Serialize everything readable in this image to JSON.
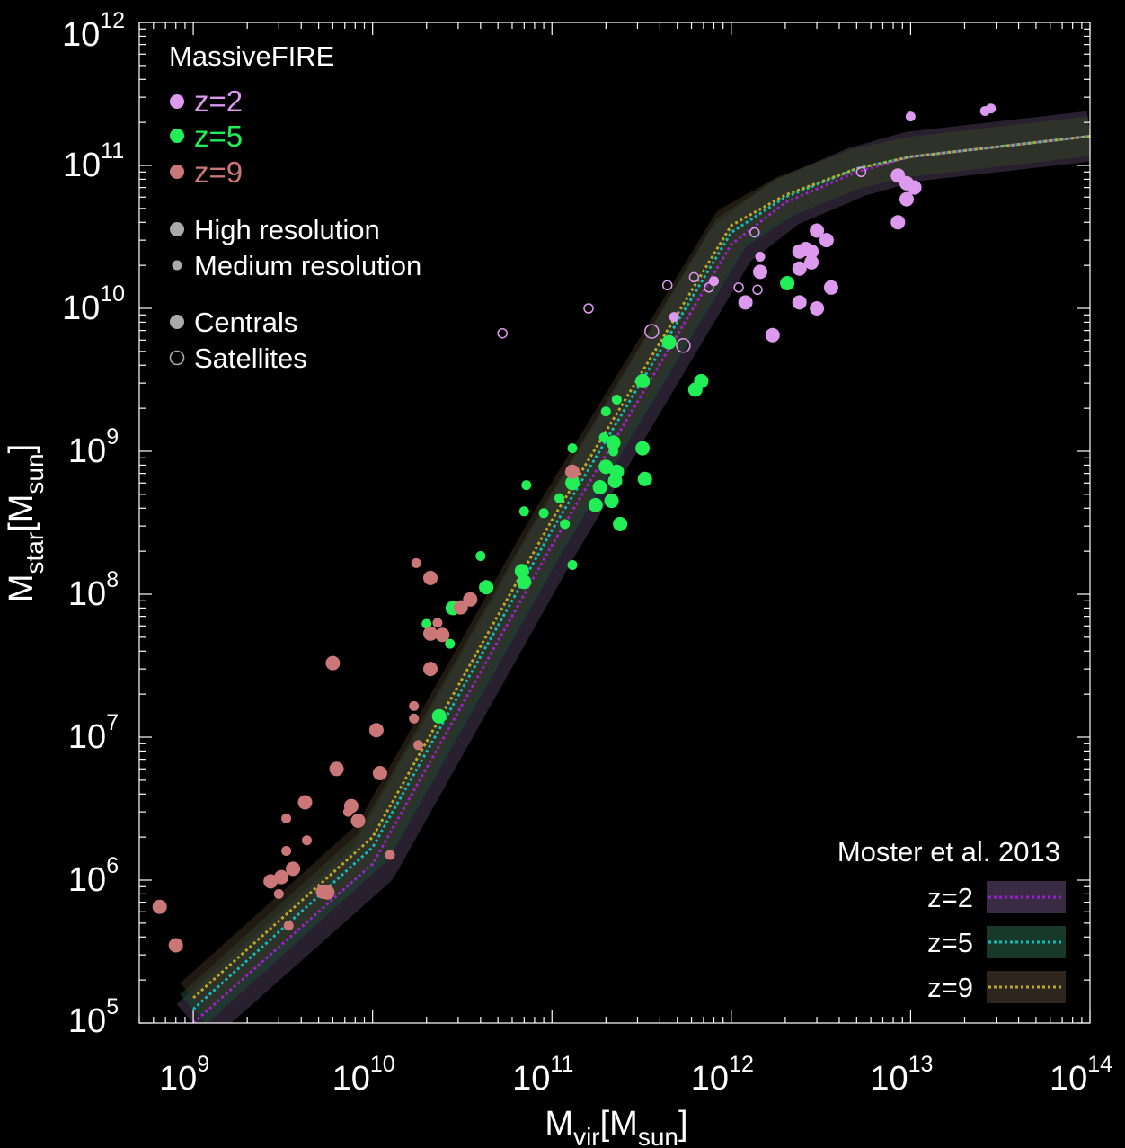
{
  "chart_data": {
    "type": "scatter",
    "x_scale": "log",
    "y_scale": "log",
    "xlim": [
      500000000.0,
      100000000000000.0
    ],
    "ylim": [
      100000.0,
      1000000000000.0
    ],
    "xlabel": {
      "main": "M",
      "sub": "vir",
      "rest": "[M",
      "sub2": "sun",
      "end": "]"
    },
    "ylabel": {
      "main": "M",
      "sub": "star",
      "rest": "[M",
      "sub2": "sun",
      "end": "]"
    },
    "x_ticks": [
      {
        "value": 1000000000.0,
        "base": "10",
        "exp": "9"
      },
      {
        "value": 10000000000.0,
        "base": "10",
        "exp": "10"
      },
      {
        "value": 100000000000.0,
        "base": "10",
        "exp": "11"
      },
      {
        "value": 1000000000000.0,
        "base": "10",
        "exp": "12"
      },
      {
        "value": 10000000000000.0,
        "base": "10",
        "exp": "13"
      },
      {
        "value": 100000000000000.0,
        "base": "10",
        "exp": "14"
      }
    ],
    "y_ticks": [
      {
        "value": 100000.0,
        "base": "10",
        "exp": "5"
      },
      {
        "value": 1000000.0,
        "base": "10",
        "exp": "6"
      },
      {
        "value": 10000000.0,
        "base": "10",
        "exp": "7"
      },
      {
        "value": 100000000.0,
        "base": "10",
        "exp": "8"
      },
      {
        "value": 1000000000.0,
        "base": "10",
        "exp": "9"
      },
      {
        "value": 10000000000.0,
        "base": "10",
        "exp": "10"
      },
      {
        "value": 100000000000.0,
        "base": "10",
        "exp": "11"
      },
      {
        "value": 1000000000000.0,
        "base": "10",
        "exp": "12"
      }
    ],
    "legend_top": {
      "title": "MassiveFIRE",
      "placement": "top-left",
      "series": [
        {
          "label": "z=2",
          "color": "#dd99ee"
        },
        {
          "label": "z=5",
          "color": "#22ee55"
        },
        {
          "label": "z=9",
          "color": "#cc7777"
        }
      ],
      "markers": [
        {
          "label": "High resolution",
          "kind": "large"
        },
        {
          "label": "Medium resolution",
          "kind": "small"
        },
        {
          "label": "Centrals",
          "kind": "filled"
        },
        {
          "label": "Satellites",
          "kind": "open"
        }
      ]
    },
    "legend_bottom": {
      "title": "Moster et al. 2013",
      "placement": "bottom-right",
      "entries": [
        {
          "label": "z=2",
          "line_color": "#9922cc",
          "band_color": "#3a2a44"
        },
        {
          "label": "z=5",
          "line_color": "#11bbbb",
          "band_color": "#18382a"
        },
        {
          "label": "z=9",
          "line_color": "#bbaa22",
          "band_color": "#2e261e"
        }
      ]
    },
    "relations": [
      {
        "z": "2",
        "color": "#9922cc",
        "band_color": "#4a3a55",
        "points": [
          [
            1000000000.0,
            100000.0
          ],
          [
            10000000000.0,
            1300000.0
          ],
          [
            100000000000.0,
            220000000.0
          ],
          [
            1000000000000.0,
            28000000000.0
          ],
          [
            2000000000000.0,
            55000000000.0
          ],
          [
            5000000000000.0,
            90000000000.0
          ],
          [
            10000000000000.0,
            115000000000.0
          ],
          [
            100000000000000.0,
            160000000000.0
          ]
        ]
      },
      {
        "z": "5",
        "color": "#11bbbb",
        "band_color": "#1f4a33",
        "points": [
          [
            1000000000.0,
            125000.0
          ],
          [
            10000000000.0,
            1700000.0
          ],
          [
            100000000000.0,
            280000000.0
          ],
          [
            1000000000000.0,
            34000000000.0
          ],
          [
            2000000000000.0,
            60000000000.0
          ],
          [
            5000000000000.0,
            95000000000.0
          ],
          [
            10000000000000.0,
            115000000000.0
          ],
          [
            100000000000000.0,
            160000000000.0
          ]
        ]
      },
      {
        "z": "9",
        "color": "#bbaa22",
        "band_color": "#3a3020",
        "points": [
          [
            1000000000.0,
            150000.0
          ],
          [
            10000000000.0,
            2000000.0
          ],
          [
            100000000000.0,
            330000000.0
          ],
          [
            1000000000000.0,
            38000000000.0
          ],
          [
            2000000000000.0,
            62000000000.0
          ],
          [
            5000000000000.0,
            95000000000.0
          ],
          [
            10000000000000.0,
            115000000000.0
          ],
          [
            100000000000000.0,
            160000000000.0
          ]
        ]
      }
    ],
    "series": [
      {
        "name": "z=2",
        "color": "#dd99ee",
        "points": [
          [
            10000000000000.0,
            220000000000.0,
            "s",
            "f"
          ],
          [
            26000000000000.0,
            240000000000.0,
            "s",
            "f"
          ],
          [
            28000000000000.0,
            250000000000.0,
            "s",
            "f"
          ],
          [
            8500000000000.0,
            85000000000.0,
            "l",
            "f"
          ],
          [
            9500000000000.0,
            75000000000.0,
            "l",
            "f"
          ],
          [
            10500000000000.0,
            70000000000.0,
            "l",
            "f"
          ],
          [
            9500000000000.0,
            58000000000.0,
            "l",
            "f"
          ],
          [
            8500000000000.0,
            40000000000.0,
            "l",
            "f"
          ],
          [
            2400000000000.0,
            25000000000.0,
            "l",
            "f"
          ],
          [
            2600000000000.0,
            26000000000.0,
            "l",
            "f"
          ],
          [
            2800000000000.0,
            25000000000.0,
            "l",
            "f"
          ],
          [
            3000000000000.0,
            35000000000.0,
            "l",
            "f"
          ],
          [
            3400000000000.0,
            30000000000.0,
            "l",
            "f"
          ],
          [
            2800000000000.0,
            21000000000.0,
            "l",
            "f"
          ],
          [
            2400000000000.0,
            19000000000.0,
            "l",
            "f"
          ],
          [
            1450000000000.0,
            18000000000.0,
            "l",
            "f"
          ],
          [
            1450000000000.0,
            23000000000.0,
            "s",
            "f"
          ],
          [
            3600000000000.0,
            14000000000.0,
            "l",
            "f"
          ],
          [
            2400000000000.0,
            11000000000.0,
            "l",
            "f"
          ],
          [
            3000000000000.0,
            10000000000.0,
            "l",
            "f"
          ],
          [
            1200000000000.0,
            11000000000.0,
            "l",
            "f"
          ],
          [
            1700000000000.0,
            6500000000.0,
            "l",
            "f"
          ],
          [
            800000000000.0,
            15500000000.0,
            "s",
            "f"
          ],
          [
            480000000000.0,
            8700000000.0,
            "s",
            "f"
          ],
          [
            5300000000000.0,
            90000000000.0,
            "s",
            "o"
          ],
          [
            1350000000000.0,
            34000000000.0,
            "s",
            "o"
          ],
          [
            620000000000.0,
            16500000000.0,
            "s",
            "o"
          ],
          [
            750000000000.0,
            14000000000.0,
            "s",
            "o"
          ],
          [
            440000000000.0,
            14500000000.0,
            "s",
            "o"
          ],
          [
            1100000000000.0,
            14000000000.0,
            "s",
            "o"
          ],
          [
            1400000000000.0,
            13500000000.0,
            "s",
            "o"
          ],
          [
            160000000000.0,
            10000000000.0,
            "s",
            "o"
          ],
          [
            53000000000.0,
            6700000000.0,
            "s",
            "o"
          ],
          [
            360000000000.0,
            6900000000.0,
            "l",
            "o"
          ],
          [
            540000000000.0,
            5500000000.0,
            "l",
            "o"
          ]
        ]
      },
      {
        "name": "z=5",
        "color": "#22ee55",
        "points": [
          [
            2050000000000.0,
            15000000000.0,
            "l",
            "f"
          ],
          [
            450000000000.0,
            5800000000.0,
            "l",
            "f"
          ],
          [
            320000000000.0,
            3100000000.0,
            "l",
            "f"
          ],
          [
            680000000000.0,
            3100000000.0,
            "l",
            "f"
          ],
          [
            630000000000.0,
            2700000000.0,
            "l",
            "f"
          ],
          [
            230000000000.0,
            2300000000.0,
            "s",
            "f"
          ],
          [
            200000000000.0,
            1900000000.0,
            "s",
            "f"
          ],
          [
            195000000000.0,
            1250000000.0,
            "s",
            "f"
          ],
          [
            220000000000.0,
            1150000000.0,
            "l",
            "f"
          ],
          [
            320000000000.0,
            1050000000.0,
            "l",
            "f"
          ],
          [
            220000000000.0,
            1000000000.0,
            "s",
            "f"
          ],
          [
            130000000000.0,
            1050000000.0,
            "s",
            "f"
          ],
          [
            200000000000.0,
            780000000.0,
            "l",
            "f"
          ],
          [
            230000000000.0,
            720000000.0,
            "l",
            "f"
          ],
          [
            225000000000.0,
            620000000.0,
            "l",
            "f"
          ],
          [
            330000000000.0,
            640000000.0,
            "l",
            "f"
          ],
          [
            130000000000.0,
            600000000.0,
            "l",
            "f"
          ],
          [
            185000000000.0,
            560000000.0,
            "l",
            "f"
          ],
          [
            72000000000.0,
            580000000.0,
            "s",
            "f"
          ],
          [
            110000000000.0,
            470000000.0,
            "s",
            "f"
          ],
          [
            215000000000.0,
            450000000.0,
            "l",
            "f"
          ],
          [
            175000000000.0,
            420000000.0,
            "l",
            "f"
          ],
          [
            70000000000.0,
            380000000.0,
            "s",
            "f"
          ],
          [
            90000000000.0,
            370000000.0,
            "s",
            "f"
          ],
          [
            118000000000.0,
            310000000.0,
            "s",
            "f"
          ],
          [
            240000000000.0,
            310000000.0,
            "l",
            "f"
          ],
          [
            40000000000.0,
            185000000.0,
            "s",
            "f"
          ],
          [
            130000000000.0,
            160000000.0,
            "s",
            "f"
          ],
          [
            68000000000.0,
            145000000.0,
            "l",
            "f"
          ],
          [
            70000000000.0,
            122000000.0,
            "l",
            "f"
          ],
          [
            43000000000.0,
            112000000.0,
            "l",
            "f"
          ],
          [
            28000000000.0,
            80000000.0,
            "l",
            "f"
          ],
          [
            20000000000.0,
            62000000.0,
            "s",
            "f"
          ],
          [
            27000000000.0,
            45000000.0,
            "s",
            "f"
          ],
          [
            23500000000.0,
            14000000.0,
            "l",
            "f"
          ]
        ]
      },
      {
        "name": "z=9",
        "color": "#cc7777",
        "points": [
          [
            130000000000.0,
            720000000.0,
            "l",
            "f"
          ],
          [
            17500000000.0,
            165000000.0,
            "s",
            "f"
          ],
          [
            21000000000.0,
            130000000.0,
            "l",
            "f"
          ],
          [
            35000000000.0,
            92000000.0,
            "l",
            "f"
          ],
          [
            31000000000.0,
            81000000.0,
            "l",
            "f"
          ],
          [
            23000000000.0,
            63000000.0,
            "s",
            "f"
          ],
          [
            21000000000.0,
            53000000.0,
            "l",
            "f"
          ],
          [
            24500000000.0,
            52000000.0,
            "l",
            "f"
          ],
          [
            21000000000.0,
            30000000.0,
            "l",
            "f"
          ],
          [
            6000000000.0,
            33000000.0,
            "l",
            "f"
          ],
          [
            17000000000.0,
            16500000.0,
            "s",
            "f"
          ],
          [
            17000000000.0,
            13500000.0,
            "s",
            "f"
          ],
          [
            10500000000.0,
            11200000.0,
            "l",
            "f"
          ],
          [
            18000000000.0,
            8800000.0,
            "s",
            "f"
          ],
          [
            6300000000.0,
            6000000.0,
            "l",
            "f"
          ],
          [
            11000000000.0,
            5600000.0,
            "l",
            "f"
          ],
          [
            4200000000.0,
            3500000.0,
            "l",
            "f"
          ],
          [
            7600000000.0,
            3300000.0,
            "l",
            "f"
          ],
          [
            7300000000.0,
            3000000.0,
            "s",
            "f"
          ],
          [
            3300000000.0,
            2700000.0,
            "s",
            "f"
          ],
          [
            8300000000.0,
            2600000.0,
            "l",
            "f"
          ],
          [
            4300000000.0,
            1900000.0,
            "s",
            "f"
          ],
          [
            3300000000.0,
            1600000.0,
            "s",
            "f"
          ],
          [
            12500000000.0,
            1500000.0,
            "s",
            "f"
          ],
          [
            3600000000.0,
            1200000.0,
            "l",
            "f"
          ],
          [
            3100000000.0,
            1050000.0,
            "l",
            "f"
          ],
          [
            2700000000.0,
            980000.0,
            "l",
            "f"
          ],
          [
            3000000000.0,
            800000.0,
            "s",
            "f"
          ],
          [
            5300000000.0,
            830000.0,
            "l",
            "f"
          ],
          [
            5600000000.0,
            820000.0,
            "l",
            "f"
          ],
          [
            3400000000.0,
            480000.0,
            "s",
            "f"
          ],
          [
            650000000.0,
            650000.0,
            "l",
            "f"
          ],
          [
            800000000.0,
            350000.0,
            "l",
            "f"
          ]
        ]
      }
    ]
  }
}
